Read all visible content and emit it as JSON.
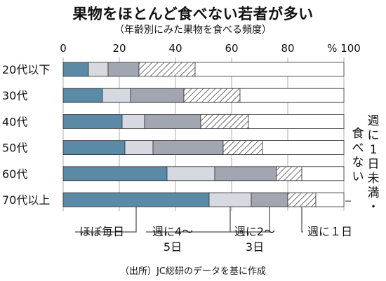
{
  "chart_data": {
    "type": "bar",
    "orientation": "horizontal",
    "stacked": true,
    "title": "果物をほとんど食べない若者が多い",
    "subtitle": "（年齢別にみた果物を食べる頻度）",
    "source": "（出所）JC総研のデータを基に作成",
    "xlim": [
      0,
      100
    ],
    "x_unit": "%",
    "xticks": [
      0,
      20,
      40,
      60,
      80,
      100
    ],
    "xtick_labels": [
      "0",
      "20",
      "40",
      "60",
      "80",
      "% 100"
    ],
    "categories": [
      "20代以下",
      "30代",
      "40代",
      "50代",
      "60代",
      "70代以上"
    ],
    "series": [
      {
        "name": "ほぼ毎日",
        "values": [
          9,
          14,
          21,
          22,
          37,
          52
        ],
        "color": "#5b8aa6",
        "pattern": "solid"
      },
      {
        "name": "週に4〜5日",
        "values": [
          7,
          10,
          8,
          10,
          17,
          15
        ],
        "color": "#d6d9df",
        "pattern": "solid"
      },
      {
        "name": "週に2〜3日",
        "values": [
          11,
          19,
          20,
          25,
          22,
          13
        ],
        "color": "#a2a6b0",
        "pattern": "solid"
      },
      {
        "name": "週に１日",
        "values": [
          20,
          20,
          17,
          14,
          9,
          10
        ],
        "color": "#ffffff",
        "pattern": "hatch"
      },
      {
        "name": "週に１日未満・食べない",
        "values": [
          53,
          37,
          34,
          29,
          15,
          10
        ],
        "color": "#ffffff",
        "pattern": "none"
      }
    ],
    "legend_placement": "bottom and right"
  }
}
